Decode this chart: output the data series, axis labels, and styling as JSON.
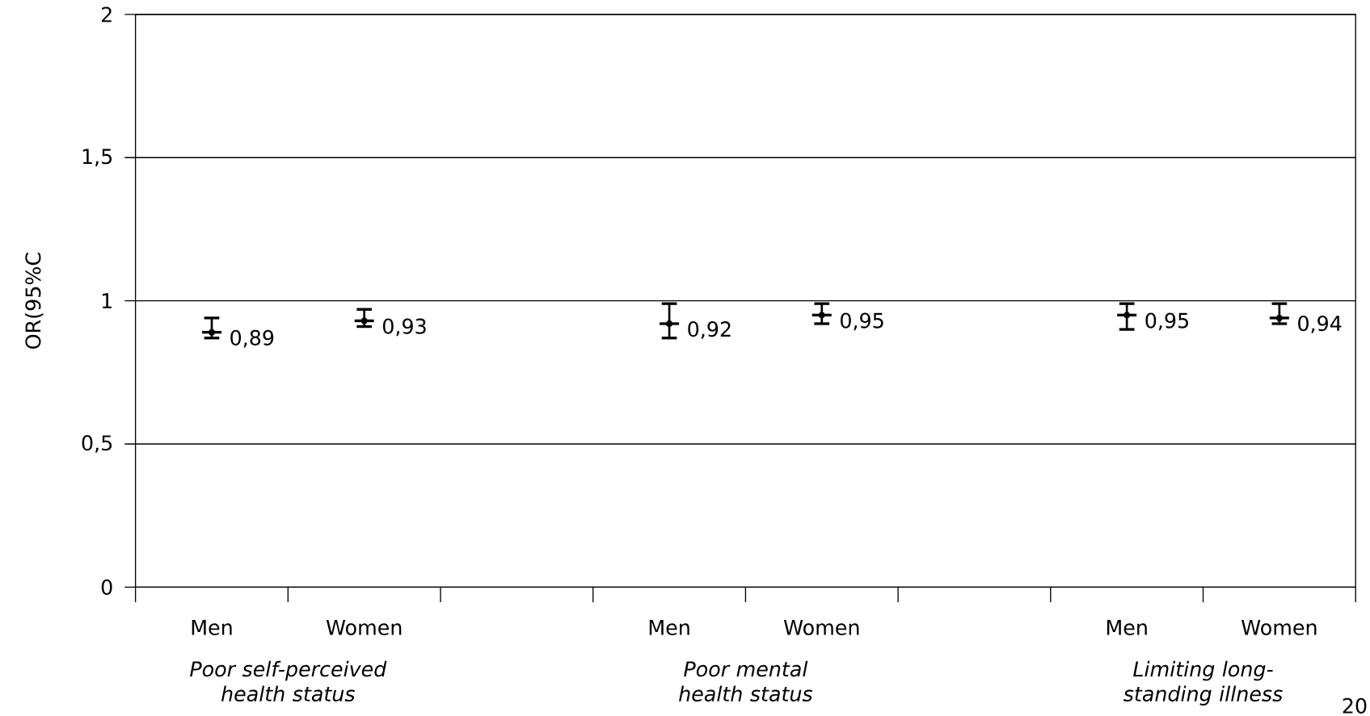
{
  "chart_data": {
    "type": "scatter",
    "ylabel": "OR(95%C",
    "categories": [
      "Men",
      "Women",
      null,
      "Men",
      "Women",
      null,
      "Men",
      "Women"
    ],
    "values": [
      0.89,
      0.93,
      null,
      0.92,
      0.95,
      null,
      0.95,
      0.94
    ],
    "errors": [
      [
        0.87,
        0.94
      ],
      [
        0.91,
        0.97
      ],
      null,
      [
        0.87,
        0.99
      ],
      [
        0.92,
        0.99
      ],
      null,
      [
        0.9,
        0.99
      ],
      [
        0.92,
        0.99
      ]
    ],
    "value_labels": [
      "0,89",
      "0,93",
      null,
      "0,92",
      "0,95",
      null,
      "0,95",
      "0,94"
    ],
    "color": "#000000",
    "ylim": [
      0,
      2
    ],
    "yticks": [
      0,
      {
        "value": 0.5,
        "label": "0,5"
      },
      1,
      {
        "value": 1.5,
        "label": "1,5"
      },
      2
    ],
    "grid": "y",
    "annotations": [
      "Poor self-perceived health status",
      "Poor mental health status",
      "Limiting long-standing illness",
      "20"
    ]
  }
}
